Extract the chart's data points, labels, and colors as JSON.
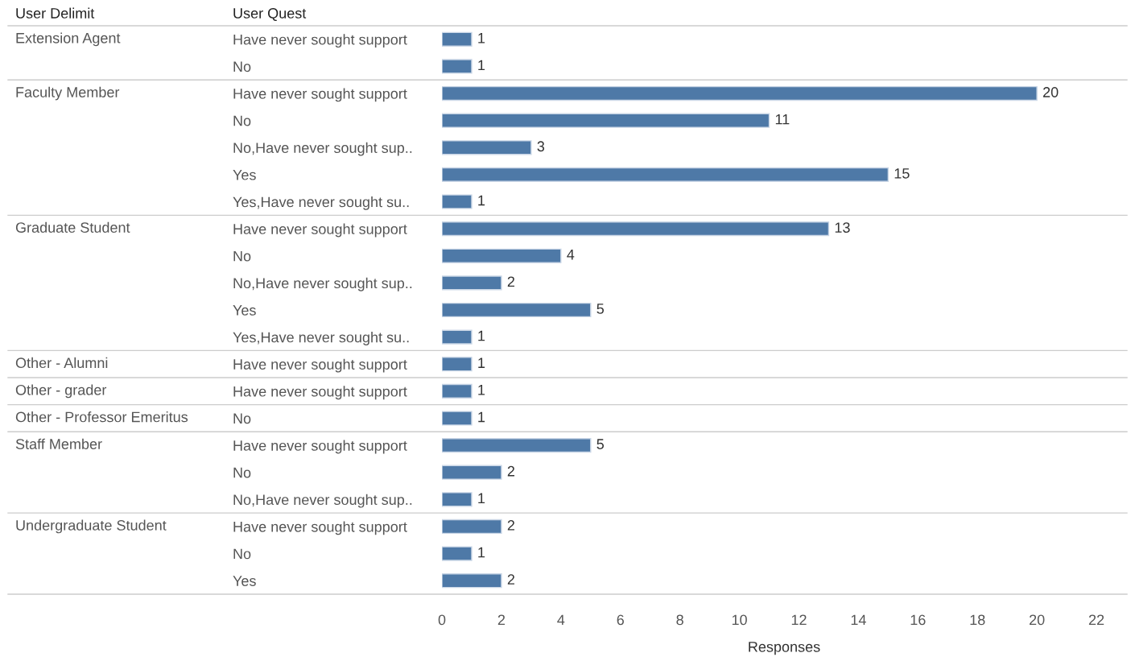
{
  "chart_data": {
    "type": "bar",
    "orientation": "horizontal",
    "xlabel": "Responses",
    "ylabel": "User Quest",
    "annotations": [
      "User Delimit"
    ],
    "categories": [
      "Have never sought support",
      "No",
      "Have never sought support",
      "No",
      "No,Have never sought sup..",
      "Yes",
      "Yes,Have never sought su..",
      "Have never sought support",
      "No",
      "No,Have never sought sup..",
      "Yes",
      "Yes,Have never sought su..",
      "Have never sought support",
      "Have never sought support",
      "No",
      "Have never sought support",
      "No",
      "No,Have never sought sup..",
      "Have never sought support",
      "No",
      "Yes"
    ],
    "y2_categories": [
      "Extension Agent",
      null,
      "Faculty Member",
      null,
      null,
      null,
      null,
      "Graduate Student",
      null,
      null,
      null,
      null,
      "Other - Alumni",
      "Other - grader",
      "Other - Professor Emeritus",
      "Staff Member",
      null,
      null,
      "Undergraduate Student",
      null,
      null
    ],
    "values": [
      1,
      1,
      20,
      11,
      3,
      15,
      1,
      13,
      4,
      2,
      5,
      1,
      1,
      1,
      1,
      5,
      2,
      1,
      2,
      1,
      2
    ],
    "color": "#4e79a7",
    "data_labels": true,
    "grid": false,
    "xlim": [
      0,
      23
    ],
    "xticks": [
      0,
      2,
      4,
      6,
      8,
      10,
      12,
      14,
      16,
      18,
      20,
      22
    ]
  }
}
